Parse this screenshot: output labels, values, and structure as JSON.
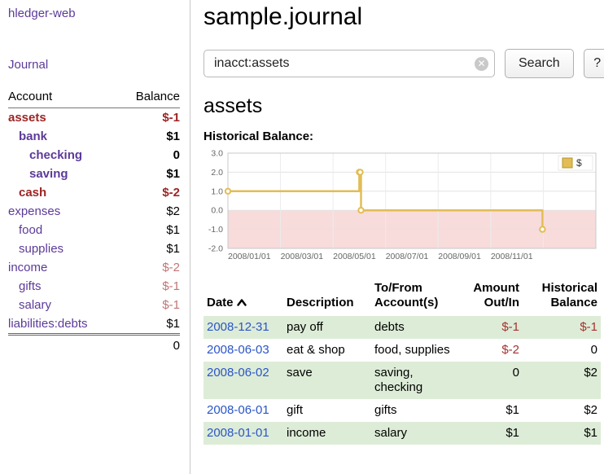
{
  "colors": {
    "link_purple": "#5c3a99",
    "link_blue": "#2a55c8",
    "negative_red": "#9e2424",
    "negative_rose": "#c17575",
    "row_stripe_green": "#ddecd7"
  },
  "header": {
    "app_title": "hledger-web"
  },
  "sidebar": {
    "journal_link": "Journal",
    "account_col": "Account",
    "balance_col": "Balance",
    "accounts": [
      {
        "name": "assets",
        "level": 0,
        "balance": "$-1",
        "name_color": "red",
        "balance_color": "red",
        "bold": true
      },
      {
        "name": "bank",
        "level": 1,
        "balance": "$1",
        "name_color": "purple",
        "balance_color": "black",
        "bold": true
      },
      {
        "name": "checking",
        "level": 2,
        "balance": "0",
        "name_color": "purple",
        "balance_color": "black",
        "bold": true
      },
      {
        "name": "saving",
        "level": 2,
        "balance": "$1",
        "name_color": "purple",
        "balance_color": "black",
        "bold": true
      },
      {
        "name": "cash",
        "level": 1,
        "balance": "$-2",
        "name_color": "red",
        "balance_color": "red",
        "bold": true
      },
      {
        "name": "expenses",
        "level": 0,
        "balance": "$2",
        "name_color": "purple",
        "balance_color": "black",
        "bold": false
      },
      {
        "name": "food",
        "level": 1,
        "balance": "$1",
        "name_color": "purple",
        "balance_color": "black",
        "bold": false
      },
      {
        "name": "supplies",
        "level": 1,
        "balance": "$1",
        "name_color": "purple",
        "balance_color": "black",
        "bold": false
      },
      {
        "name": "income",
        "level": 0,
        "balance": "$-2",
        "name_color": "purple",
        "balance_color": "rose",
        "bold": false
      },
      {
        "name": "gifts",
        "level": 1,
        "balance": "$-1",
        "name_color": "purple",
        "balance_color": "rose",
        "bold": false
      },
      {
        "name": "salary",
        "level": 1,
        "balance": "$-1",
        "name_color": "purple",
        "balance_color": "rose",
        "bold": false
      },
      {
        "name": "liabilities:debts",
        "level": 0,
        "balance": "$1",
        "name_color": "purple",
        "balance_color": "black",
        "bold": false
      }
    ],
    "total": "0"
  },
  "main": {
    "journal_title": "sample.journal",
    "search": {
      "value": "inacct:assets",
      "clear_label": "x",
      "search_button": "Search",
      "help_button": "?"
    },
    "account_heading": "assets",
    "chart_title": "Historical Balance:"
  },
  "chart_data": {
    "type": "line",
    "step": true,
    "title": "Historical Balance",
    "ylim": [
      -2,
      3
    ],
    "y_ticks": [
      "3.0",
      "2.0",
      "1.0",
      "0.0",
      "-1.0",
      "-2.0"
    ],
    "x_ticks": [
      "2008/01/01",
      "2008/03/01",
      "2008/05/01",
      "2008/07/01",
      "2008/09/01",
      "2008/11/01"
    ],
    "x_range_months": 14,
    "x_tick_interval_months": 2,
    "negative_fill": "#f8dbdb",
    "legend": [
      {
        "label": "$"
      }
    ],
    "series": [
      {
        "name": "$",
        "color": "#e2bd55",
        "points": [
          {
            "date": "2008-01-01",
            "value": 1
          },
          {
            "date": "2008-06-01",
            "value": 2
          },
          {
            "date": "2008-06-02",
            "value": 2
          },
          {
            "date": "2008-06-03",
            "value": 0
          },
          {
            "date": "2008-12-31",
            "value": -1
          }
        ]
      }
    ]
  },
  "register": {
    "headers": {
      "date": "Date",
      "description": "Description",
      "account1": "To/From",
      "account2": "Account(s)",
      "amount1": "Amount",
      "amount2": "Out/In",
      "balance1": "Historical",
      "balance2": "Balance"
    },
    "rows": [
      {
        "date": "2008-12-31",
        "description": "pay off",
        "accounts": "debts",
        "amount": "$-1",
        "amount_negative": true,
        "balance": "$-1",
        "balance_negative": true
      },
      {
        "date": "2008-06-03",
        "description": "eat & shop",
        "accounts": "food, supplies",
        "amount": "$-2",
        "amount_negative": true,
        "balance": "0",
        "balance_negative": false
      },
      {
        "date": "2008-06-02",
        "description": "save",
        "accounts": "saving, checking",
        "amount": "0",
        "amount_negative": false,
        "balance": "$2",
        "balance_negative": false
      },
      {
        "date": "2008-06-01",
        "description": "gift",
        "accounts": "gifts",
        "amount": "$1",
        "amount_negative": false,
        "balance": "$2",
        "balance_negative": false
      },
      {
        "date": "2008-01-01",
        "description": "income",
        "accounts": "salary",
        "amount": "$1",
        "amount_negative": false,
        "balance": "$1",
        "balance_negative": false
      }
    ]
  }
}
